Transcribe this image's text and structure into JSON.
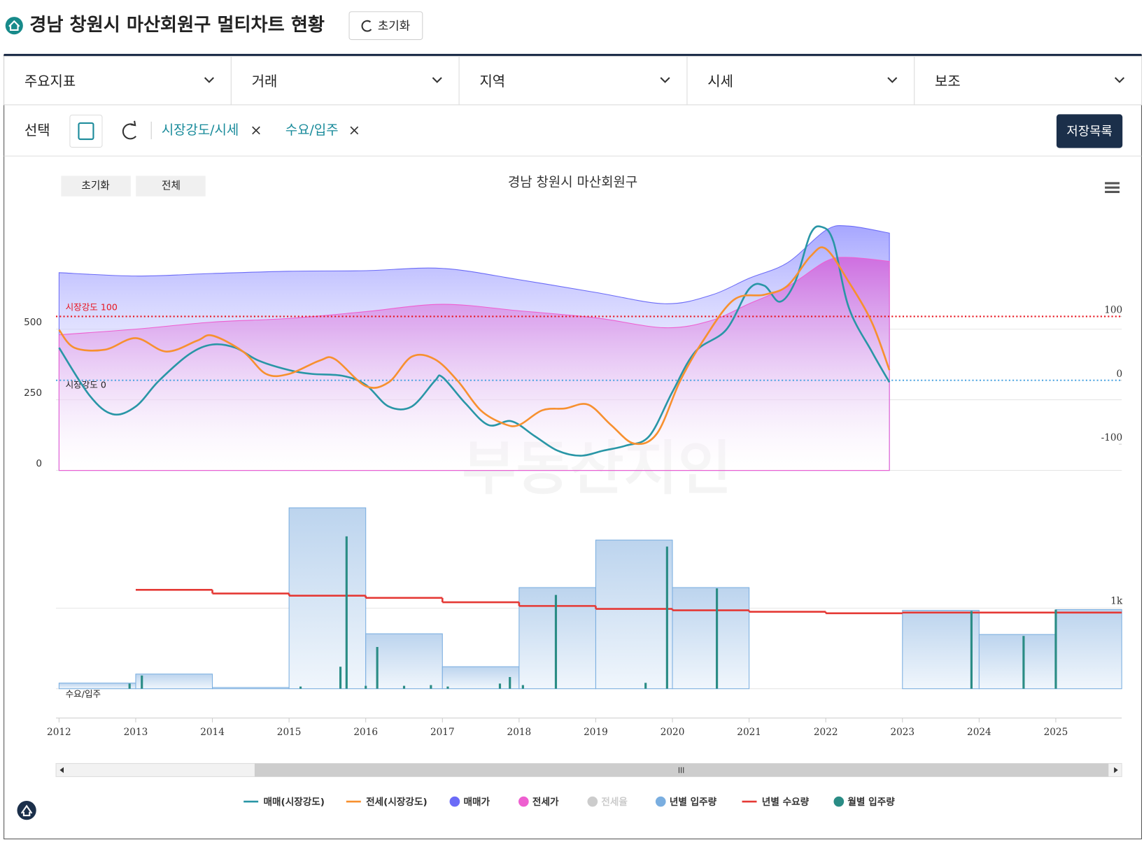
{
  "header": {
    "title": "경남 창원시 마산회원구 멀티차트 현황",
    "reset_button": "초기화"
  },
  "tabs": [
    "주요지표",
    "거래",
    "지역",
    "시세",
    "보조"
  ],
  "selection": {
    "label": "선택",
    "chips": [
      "시장강도/시세",
      "수요/입주"
    ],
    "save_list": "저장목록"
  },
  "watermark": "부동산지인",
  "chart_data": [
    {
      "type": "line",
      "title": "경남 창원시 마산회원구",
      "zoom_buttons": [
        "초기화",
        "전체"
      ],
      "xlim": [
        2011.96,
        2025.86
      ],
      "ylim": [
        0,
        900
      ],
      "yticks": [
        0,
        250,
        500
      ],
      "y2lim": [
        -141,
        257
      ],
      "y2ticks": [
        -100,
        0,
        100
      ],
      "grid": true,
      "plot_lines": [
        {
          "value": 100,
          "label": "시장강도 100",
          "color": "#e8141e"
        },
        {
          "value": 0,
          "label": "시장강도 0",
          "color": "#4aa3e0"
        }
      ],
      "series": [
        {
          "name": "매매가",
          "type": "area",
          "color": "#6b6bf7",
          "x": [
            2012.0,
            2013.0,
            2014.0,
            2015.0,
            2016.0,
            2017.0,
            2018.0,
            2019.0,
            2019.9,
            2020.5,
            2021.0,
            2021.5,
            2022.0,
            2022.3,
            2022.83
          ],
          "values": [
            700,
            688,
            697,
            705,
            707,
            715,
            675,
            630,
            590,
            620,
            680,
            735,
            850,
            865,
            840
          ]
        },
        {
          "name": "전세가",
          "type": "area",
          "color": "#ee5fd0",
          "x": [
            2012.0,
            2013.0,
            2014.0,
            2015.0,
            2016.0,
            2017.0,
            2018.0,
            2019.0,
            2019.9,
            2020.5,
            2021.0,
            2021.5,
            2022.0,
            2022.3,
            2022.83
          ],
          "values": [
            480,
            500,
            525,
            538,
            562,
            588,
            565,
            540,
            505,
            530,
            590,
            650,
            740,
            754,
            740
          ]
        },
        {
          "name": "매매(시장강도)",
          "type": "line",
          "axis": "y2",
          "color": "#2996a6",
          "x": [
            2012.0,
            2012.4,
            2012.7,
            2013.0,
            2013.3,
            2013.7,
            2014.0,
            2014.3,
            2014.6,
            2015.0,
            2015.3,
            2015.7,
            2016.0,
            2016.3,
            2016.6,
            2016.9,
            2017.0,
            2017.3,
            2017.6,
            2017.9,
            2018.2,
            2018.5,
            2018.8,
            2019.1,
            2019.4,
            2019.7,
            2020.0,
            2020.3,
            2020.7,
            2021.0,
            2021.2,
            2021.4,
            2021.6,
            2021.8,
            2021.95,
            2022.1,
            2022.3,
            2022.6,
            2022.83
          ],
          "values": [
            51,
            -24,
            -53,
            -41,
            -1,
            41,
            56,
            51,
            31,
            16,
            10,
            7,
            -7,
            -41,
            -41,
            -1,
            5,
            -36,
            -70,
            -64,
            -87,
            -110,
            -118,
            -110,
            -102,
            -87,
            -18,
            45,
            79,
            143,
            148,
            123,
            154,
            229,
            240,
            217,
            114,
            45,
            -3
          ]
        },
        {
          "name": "전세(시장강도)",
          "type": "line",
          "axis": "y2",
          "color": "#f7902f",
          "x": [
            2012.0,
            2012.2,
            2012.6,
            2013.0,
            2013.4,
            2013.8,
            2014.0,
            2014.4,
            2014.7,
            2015.0,
            2015.4,
            2015.6,
            2016.0,
            2016.3,
            2016.6,
            2016.9,
            2017.2,
            2017.5,
            2017.8,
            2018.0,
            2018.3,
            2018.6,
            2018.9,
            2019.2,
            2019.5,
            2019.8,
            2020.1,
            2020.4,
            2020.8,
            2021.2,
            2021.5,
            2021.8,
            2022.0,
            2022.3,
            2022.6,
            2022.83
          ],
          "values": [
            79,
            51,
            48,
            66,
            45,
            62,
            70,
            45,
            10,
            10,
            31,
            33,
            -9,
            -3,
            37,
            33,
            -1,
            -47,
            -68,
            -70,
            -47,
            -44,
            -38,
            -70,
            -99,
            -83,
            -1,
            62,
            126,
            134,
            148,
            194,
            206,
            154,
            91,
            16
          ]
        },
        {
          "name": "전세율",
          "type": "line",
          "visible": false,
          "color": "#cccccc",
          "x": [],
          "values": []
        }
      ]
    },
    {
      "type": "bar",
      "annotation": "수요/입주",
      "xlim": [
        2011.96,
        2025.86
      ],
      "ylim": [
        -364,
        2273
      ],
      "yticks": [
        0,
        {
          "value": 1000,
          "label": "1k"
        }
      ],
      "xticks": [
        2012,
        2013,
        2014,
        2015,
        2016,
        2017,
        2018,
        2019,
        2020,
        2021,
        2022,
        2023,
        2024,
        2025
      ],
      "grid": true,
      "series": [
        {
          "name": "년별 입주량",
          "type": "step-area",
          "color": "#7aaee0",
          "x": [
            2012,
            2013,
            2014,
            2015,
            2016,
            2017,
            2018,
            2019,
            2020,
            2021,
            2022,
            2023,
            2024,
            2025
          ],
          "values": [
            70,
            182,
            15,
            2245,
            682,
            273,
            1255,
            1845,
            1255,
            0,
            0,
            973,
            673,
            982
          ]
        },
        {
          "name": "년별 수요량",
          "type": "step-line",
          "color": "#e53935",
          "x": [
            2013,
            2014,
            2015,
            2016,
            2017,
            2018,
            2019,
            2020,
            2021,
            2022,
            2023,
            2024,
            2025
          ],
          "values": [
            1227,
            1182,
            1155,
            1127,
            1073,
            1027,
            991,
            973,
            955,
            936,
            945,
            945,
            945
          ]
        },
        {
          "name": "월별 입주량",
          "type": "bar",
          "color": "#2a8c85",
          "x": [
            2012.92,
            2013.08,
            2015.15,
            2015.67,
            2015.75,
            2016.0,
            2016.15,
            2016.5,
            2016.85,
            2017.07,
            2017.75,
            2017.88,
            2018.05,
            2018.48,
            2019.65,
            2019.93,
            2020.58,
            2023.9,
            2024.58,
            2025.0
          ],
          "values": [
            64,
            164,
            27,
            273,
            1891,
            36,
            518,
            36,
            45,
            27,
            64,
            145,
            45,
            1164,
            73,
            1764,
            1245,
            964,
            655,
            982
          ]
        }
      ]
    }
  ]
}
